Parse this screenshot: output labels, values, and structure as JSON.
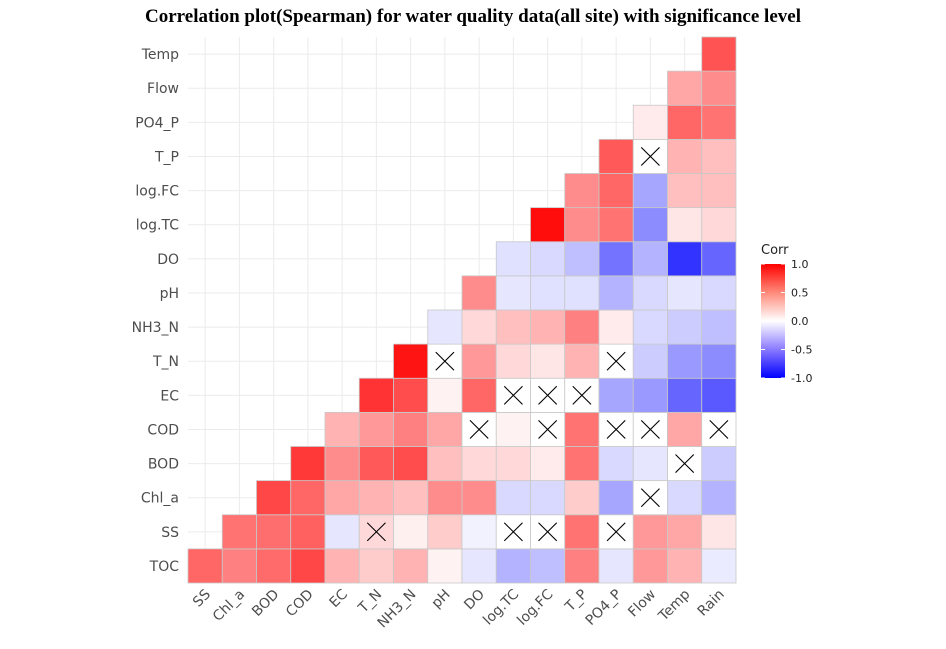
{
  "chart_data": {
    "type": "heatmap",
    "title": "Correlation plot(Spearman) for water quality data(all site) with significance level",
    "x_categories": [
      "SS",
      "Chl_a",
      "BOD",
      "COD",
      "EC",
      "T_N",
      "NH3_N",
      "pH",
      "DO",
      "log.TC",
      "log.FC",
      "T_P",
      "PO4_P",
      "Flow",
      "Temp",
      "Rain"
    ],
    "y_categories": [
      "TOC",
      "SS",
      "Chl_a",
      "BOD",
      "COD",
      "EC",
      "T_N",
      "NH3_N",
      "pH",
      "DO",
      "log.TC",
      "log.FC",
      "T_P",
      "PO4_P",
      "Flow",
      "Temp"
    ],
    "legend": {
      "title": "Corr",
      "ticks": [
        "1.0",
        "0.5",
        "0.0",
        "-0.5",
        "-1.0"
      ],
      "tick_values": [
        1.0,
        0.5,
        0.0,
        -0.5,
        -1.0
      ],
      "range": [
        -1,
        1
      ],
      "low_color": "#0000FF",
      "mid_color": "#FFFFFF",
      "high_color": "#FF0000",
      "placement": "right"
    },
    "grid": true,
    "cells": [
      {
        "row": "TOC",
        "values": [
          0.6,
          0.5,
          0.58,
          0.72,
          0.3,
          0.2,
          0.3,
          0.05,
          -0.1,
          -0.3,
          -0.25,
          0.5,
          -0.1,
          0.4,
          0.3,
          -0.08
        ],
        "insignificant": []
      },
      {
        "row": "SS",
        "values": [
          null,
          0.55,
          0.57,
          0.62,
          -0.1,
          0.15,
          0.06,
          0.2,
          -0.05,
          0.0,
          0.0,
          0.55,
          0.0,
          0.4,
          0.35,
          0.1
        ],
        "insignificant": [
          "T_N",
          "log.TC",
          "log.FC",
          "PO4_P"
        ]
      },
      {
        "row": "Chl_a",
        "values": [
          null,
          null,
          0.72,
          0.6,
          0.35,
          0.3,
          0.25,
          0.45,
          0.45,
          -0.15,
          -0.15,
          0.2,
          -0.35,
          0.0,
          -0.15,
          -0.3
        ],
        "insignificant": [
          "Flow"
        ]
      },
      {
        "row": "BOD",
        "values": [
          null,
          null,
          null,
          0.78,
          0.45,
          0.65,
          0.7,
          0.25,
          0.15,
          0.15,
          0.08,
          0.55,
          -0.15,
          -0.1,
          0.0,
          -0.2
        ],
        "insignificant": [
          "Temp"
        ]
      },
      {
        "row": "COD",
        "values": [
          null,
          null,
          null,
          null,
          0.3,
          0.4,
          0.5,
          0.35,
          0.0,
          0.05,
          0.0,
          0.55,
          0.0,
          0.0,
          0.35,
          0.0
        ],
        "insignificant": [
          "DO",
          "log.FC",
          "PO4_P",
          "Flow",
          "Rain"
        ]
      },
      {
        "row": "EC",
        "values": [
          null,
          null,
          null,
          null,
          null,
          0.8,
          0.7,
          0.05,
          0.6,
          0.0,
          0.0,
          0.0,
          -0.35,
          -0.4,
          -0.6,
          -0.65
        ],
        "insignificant": [
          "log.TC",
          "log.FC",
          "T_P"
        ]
      },
      {
        "row": "T_N",
        "values": [
          null,
          null,
          null,
          null,
          null,
          null,
          0.92,
          0.0,
          0.4,
          0.15,
          0.1,
          0.3,
          0.0,
          -0.2,
          -0.4,
          -0.45
        ],
        "insignificant": [
          "pH",
          "PO4_P"
        ]
      },
      {
        "row": "NH3_N",
        "values": [
          null,
          null,
          null,
          null,
          null,
          null,
          null,
          -0.1,
          0.15,
          0.25,
          0.3,
          0.5,
          0.08,
          -0.15,
          -0.2,
          -0.25
        ],
        "insignificant": []
      },
      {
        "row": "pH",
        "values": [
          null,
          null,
          null,
          null,
          null,
          null,
          null,
          null,
          0.45,
          -0.1,
          -0.12,
          -0.12,
          -0.3,
          -0.15,
          -0.1,
          -0.15
        ],
        "insignificant": []
      },
      {
        "row": "DO",
        "values": [
          null,
          null,
          null,
          null,
          null,
          null,
          null,
          null,
          null,
          -0.12,
          -0.15,
          -0.25,
          -0.55,
          -0.3,
          -0.8,
          -0.6
        ],
        "insignificant": []
      },
      {
        "row": "log.TC",
        "values": [
          null,
          null,
          null,
          null,
          null,
          null,
          null,
          null,
          null,
          null,
          0.95,
          0.45,
          0.55,
          -0.45,
          0.1,
          0.15
        ],
        "insignificant": []
      },
      {
        "row": "log.FC",
        "values": [
          null,
          null,
          null,
          null,
          null,
          null,
          null,
          null,
          null,
          null,
          null,
          0.45,
          0.6,
          -0.35,
          0.25,
          0.25
        ],
        "insignificant": []
      },
      {
        "row": "T_P",
        "values": [
          null,
          null,
          null,
          null,
          null,
          null,
          null,
          null,
          null,
          null,
          null,
          null,
          0.65,
          0.0,
          0.3,
          0.25
        ],
        "insignificant": [
          "Flow"
        ]
      },
      {
        "row": "PO4_P",
        "values": [
          null,
          null,
          null,
          null,
          null,
          null,
          null,
          null,
          null,
          null,
          null,
          null,
          null,
          0.08,
          0.6,
          0.55
        ],
        "insignificant": []
      },
      {
        "row": "Flow",
        "values": [
          null,
          null,
          null,
          null,
          null,
          null,
          null,
          null,
          null,
          null,
          null,
          null,
          null,
          null,
          0.35,
          0.45
        ],
        "insignificant": []
      },
      {
        "row": "Temp",
        "values": [
          null,
          null,
          null,
          null,
          null,
          null,
          null,
          null,
          null,
          null,
          null,
          null,
          null,
          null,
          null,
          0.68
        ],
        "insignificant": []
      }
    ]
  }
}
